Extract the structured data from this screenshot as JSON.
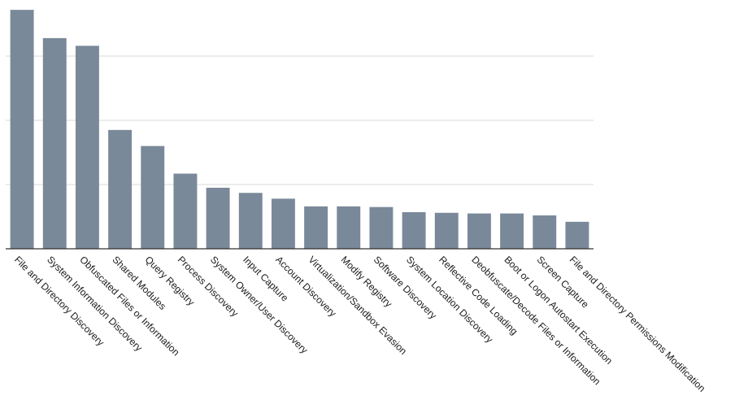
{
  "chart_data": {
    "type": "bar",
    "title": "",
    "xlabel": "",
    "ylabel": "",
    "categories": [
      "File and Directory Discovery",
      "System Information Discovery",
      "Obfuscated Files or Information",
      "Shared Modules",
      "Query Registry",
      "Process Discovery",
      "System Owner/User Discovery",
      "Input Capture",
      "Account Discovery",
      "Virtualization/Sandbox Evasion",
      "Modify Registry",
      "Software Discovery",
      "System Location Discovery",
      "Reflective Code Loading",
      "Deobfuscate/Decode Files or Information",
      "Boot or Logon Autostart Execution",
      "Screen Capture",
      "File and Directory Permissions Modification"
    ],
    "values": [
      3.72,
      3.28,
      3.16,
      1.85,
      1.6,
      1.17,
      0.95,
      0.87,
      0.78,
      0.66,
      0.66,
      0.65,
      0.57,
      0.56,
      0.55,
      0.55,
      0.52,
      0.42
    ],
    "ylim": [
      0,
      4
    ],
    "y_ticks": [
      0,
      1,
      2,
      3
    ],
    "grid": true,
    "bar_color": "#7a8999"
  }
}
